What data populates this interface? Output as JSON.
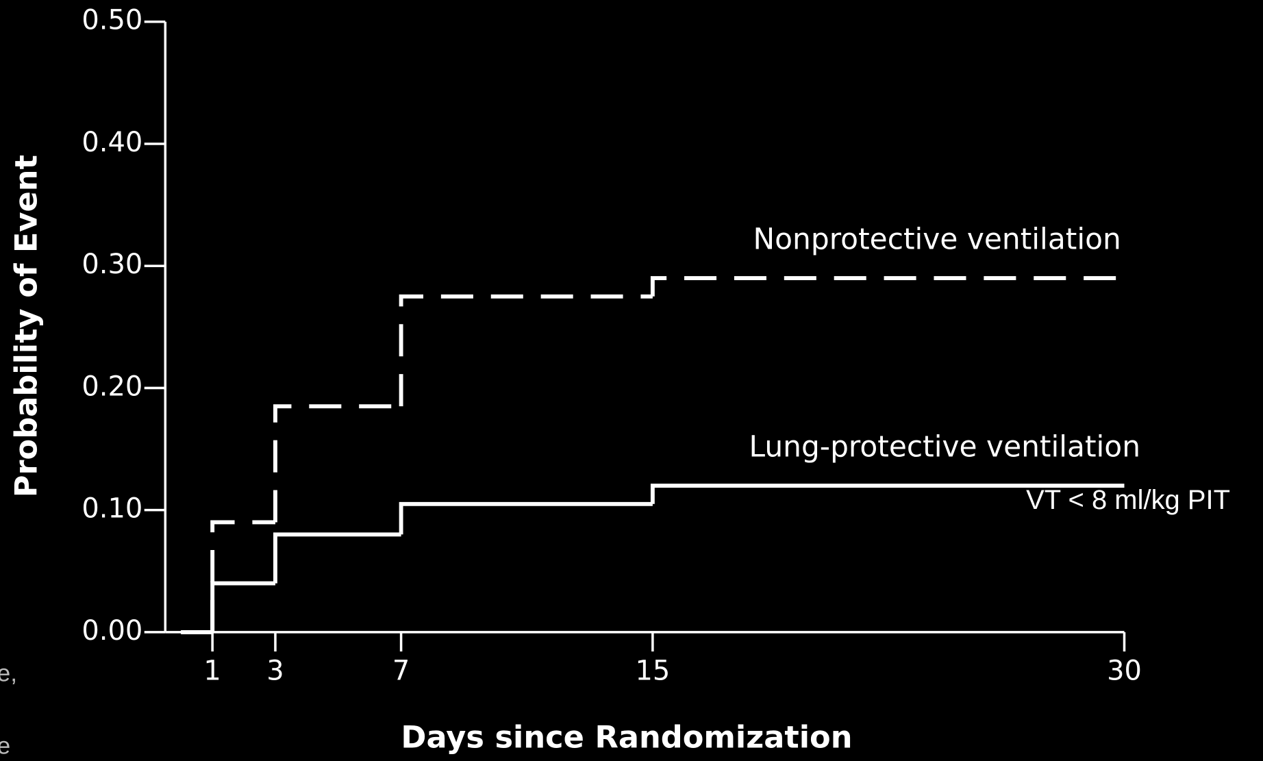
{
  "chart_data": {
    "type": "line",
    "step": "post",
    "xlabel": "Days since Randomization",
    "ylabel": "Probability of Event",
    "x": [
      0,
      1,
      3,
      7,
      15,
      30
    ],
    "series": [
      {
        "name": "Nonprotective ventilation",
        "color": "#ffffff",
        "dash": true,
        "values": [
          0,
          0.09,
          0.185,
          0.275,
          0.29,
          0.29
        ]
      },
      {
        "name": "Lung-protective ventilation",
        "color": "#ffffff",
        "dash": false,
        "values": [
          0,
          0.04,
          0.08,
          0.105,
          0.12,
          0.12
        ]
      }
    ],
    "annotations": [
      "VT < 8 ml/kg PIT"
    ],
    "fragments": [
      "e,",
      "e"
    ],
    "xlim": [
      -0.5,
      30
    ],
    "ylim": [
      0,
      0.5
    ],
    "xticks": [
      1,
      3,
      7,
      15,
      30
    ],
    "yticks": [
      {
        "value": 0,
        "label": "0.00"
      },
      {
        "value": 0.1,
        "label": "0.10"
      },
      {
        "value": 0.2,
        "label": "0.20"
      },
      {
        "value": 0.3,
        "label": "0.30"
      },
      {
        "value": 0.4,
        "label": "0.40"
      },
      {
        "value": 0.5,
        "label": "0.50"
      }
    ],
    "grid": false
  }
}
